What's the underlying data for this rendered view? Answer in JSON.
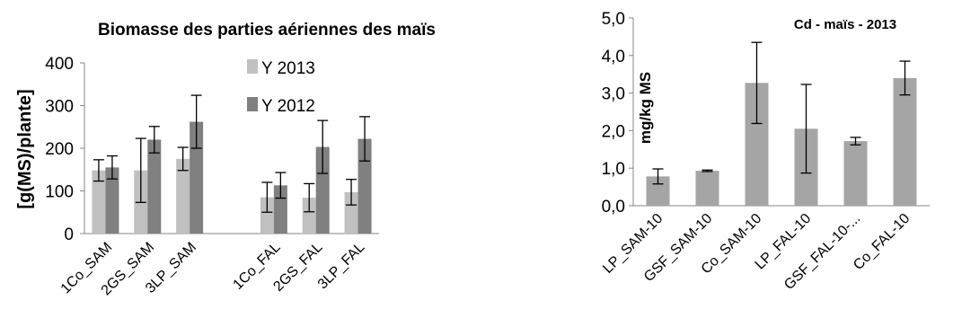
{
  "chart_data": [
    {
      "type": "bar",
      "title": "Biomasse des parties aériennes des maïs",
      "ylabel": "[g(MS)/plante]",
      "xlabel": "",
      "ylim": [
        0,
        400
      ],
      "yticks": [
        "0",
        "100",
        "200",
        "300",
        "400"
      ],
      "categories": [
        "1Co_SAM",
        "2GS_SAM",
        "3LP_SAM",
        "",
        "1Co_FAL",
        "2GS_FAL",
        "3LP_FAL"
      ],
      "series": [
        {
          "name": "Y 2013",
          "color": "#c0c0c0",
          "values": [
            148,
            148,
            175,
            null,
            85,
            84,
            97
          ],
          "errors": [
            25,
            75,
            27,
            null,
            35,
            33,
            30
          ]
        },
        {
          "name": "Y 2012",
          "color": "#808080",
          "values": [
            155,
            220,
            262,
            null,
            113,
            203,
            222
          ],
          "errors": [
            27,
            31,
            62,
            null,
            30,
            62,
            52
          ]
        }
      ],
      "legend": "top-right",
      "grid": false
    },
    {
      "type": "bar",
      "title": "Cd - maïs - 2013",
      "ylabel": "mg/kg MS",
      "xlabel": "",
      "ylim": [
        0,
        5
      ],
      "yticks": [
        "0,0",
        "1,0",
        "2,0",
        "3,0",
        "4,0",
        "5,0"
      ],
      "categories": [
        "LP_SAM-10",
        "GSF_SAM-10",
        "Co_SAM-10",
        "LP_FAL-10",
        "GSF_FAL-10-...",
        "Co_FAL-10"
      ],
      "series": [
        {
          "color": "#a5a5a5",
          "values": [
            0.78,
            0.93,
            3.27,
            2.05,
            1.72,
            3.4
          ],
          "errors": [
            0.2,
            0.02,
            1.08,
            1.18,
            0.1,
            0.45
          ]
        }
      ],
      "grid": false
    }
  ]
}
